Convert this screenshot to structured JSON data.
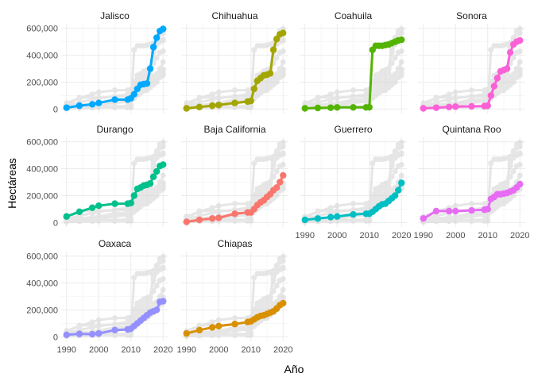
{
  "chart_data": {
    "type": "line",
    "xlabel": "Año",
    "ylabel": "Hectáreas",
    "xlim": [
      1990,
      2020
    ],
    "ylim": [
      0,
      600000
    ],
    "x_ticks": [
      1990,
      2000,
      2010,
      2020
    ],
    "y_ticks": [
      0,
      200000,
      400000,
      600000
    ],
    "x_tick_labels": [
      "1990",
      "2000",
      "2010",
      "2020"
    ],
    "y_tick_labels": [
      "0",
      "200,000",
      "400,000",
      "600,000"
    ],
    "grid": true,
    "background_color": "#d3d3d3",
    "series": [
      {
        "name": "Jalisco",
        "color": "#00a9ff",
        "x": [
          1990,
          1994,
          1998,
          2000,
          2005,
          2009,
          2010,
          2011,
          2012,
          2013,
          2014,
          2015,
          2016,
          2017,
          2018,
          2019,
          2020
        ],
        "y": [
          10000,
          25000,
          35000,
          45000,
          70000,
          70000,
          80000,
          110000,
          150000,
          180000,
          185000,
          190000,
          300000,
          460000,
          530000,
          580000,
          595000
        ]
      },
      {
        "name": "Chihuahua",
        "color": "#a3a500",
        "x": [
          1990,
          1994,
          1998,
          2000,
          2005,
          2009,
          2010,
          2011,
          2012,
          2013,
          2014,
          2015,
          2016,
          2017,
          2018,
          2019,
          2020
        ],
        "y": [
          5000,
          15000,
          25000,
          30000,
          45000,
          55000,
          60000,
          150000,
          210000,
          230000,
          250000,
          255000,
          265000,
          440000,
          520000,
          555000,
          565000
        ]
      },
      {
        "name": "Coahuila",
        "color": "#53b400",
        "x": [
          1990,
          1994,
          1998,
          2000,
          2005,
          2009,
          2010,
          2011,
          2012,
          2013,
          2014,
          2015,
          2016,
          2017,
          2018,
          2019,
          2020
        ],
        "y": [
          5000,
          8000,
          10000,
          12000,
          12000,
          12000,
          13000,
          440000,
          470000,
          470000,
          470000,
          475000,
          480000,
          490000,
          500000,
          510000,
          515000
        ]
      },
      {
        "name": "Sonora",
        "color": "#fb61d7",
        "x": [
          1990,
          1994,
          1998,
          2000,
          2005,
          2009,
          2010,
          2011,
          2012,
          2013,
          2014,
          2015,
          2016,
          2017,
          2018,
          2019,
          2020
        ],
        "y": [
          5000,
          10000,
          15000,
          18000,
          20000,
          22000,
          25000,
          100000,
          170000,
          230000,
          280000,
          290000,
          300000,
          420000,
          480000,
          500000,
          510000
        ]
      },
      {
        "name": "Durango",
        "color": "#00c08b",
        "x": [
          1990,
          1994,
          1998,
          2000,
          2005,
          2009,
          2010,
          2011,
          2012,
          2013,
          2014,
          2015,
          2016,
          2017,
          2018,
          2019,
          2020
        ],
        "y": [
          45000,
          80000,
          110000,
          125000,
          140000,
          140000,
          145000,
          200000,
          250000,
          260000,
          275000,
          280000,
          290000,
          340000,
          380000,
          420000,
          430000
        ]
      },
      {
        "name": "Baja California",
        "color": "#f8766d",
        "x": [
          1990,
          1994,
          1998,
          2000,
          2005,
          2009,
          2010,
          2011,
          2012,
          2013,
          2014,
          2015,
          2016,
          2017,
          2018,
          2019,
          2020
        ],
        "y": [
          5000,
          20000,
          30000,
          35000,
          65000,
          75000,
          75000,
          100000,
          130000,
          150000,
          165000,
          190000,
          210000,
          240000,
          260000,
          300000,
          350000
        ]
      },
      {
        "name": "Guerrero",
        "color": "#00bfc4",
        "x": [
          1990,
          1994,
          1998,
          2000,
          2005,
          2009,
          2010,
          2011,
          2012,
          2013,
          2014,
          2015,
          2016,
          2017,
          2018,
          2019,
          2020
        ],
        "y": [
          20000,
          30000,
          40000,
          45000,
          60000,
          65000,
          65000,
          80000,
          100000,
          120000,
          135000,
          140000,
          160000,
          180000,
          200000,
          240000,
          295000
        ]
      },
      {
        "name": "Quintana Roo",
        "color": "#e76bf3",
        "x": [
          1990,
          1994,
          1998,
          2000,
          2005,
          2009,
          2010,
          2011,
          2012,
          2013,
          2014,
          2015,
          2016,
          2017,
          2018,
          2019,
          2020
        ],
        "y": [
          30000,
          85000,
          85000,
          85000,
          90000,
          95000,
          100000,
          175000,
          190000,
          210000,
          210000,
          215000,
          220000,
          230000,
          240000,
          260000,
          285000
        ]
      },
      {
        "name": "Oaxaca",
        "color": "#9590ff",
        "x": [
          1990,
          1994,
          1998,
          2000,
          2005,
          2009,
          2010,
          2011,
          2012,
          2013,
          2014,
          2015,
          2016,
          2017,
          2018,
          2019,
          2020
        ],
        "y": [
          15000,
          22000,
          20000,
          25000,
          50000,
          55000,
          60000,
          80000,
          100000,
          120000,
          140000,
          160000,
          180000,
          190000,
          200000,
          260000,
          265000
        ]
      },
      {
        "name": "Chiapas",
        "color": "#d89000",
        "x": [
          1990,
          1994,
          1998,
          2000,
          2005,
          2009,
          2010,
          2011,
          2012,
          2013,
          2014,
          2015,
          2016,
          2017,
          2018,
          2019,
          2020
        ],
        "y": [
          25000,
          50000,
          70000,
          80000,
          95000,
          110000,
          115000,
          130000,
          145000,
          155000,
          160000,
          170000,
          180000,
          190000,
          210000,
          235000,
          250000
        ]
      }
    ]
  }
}
